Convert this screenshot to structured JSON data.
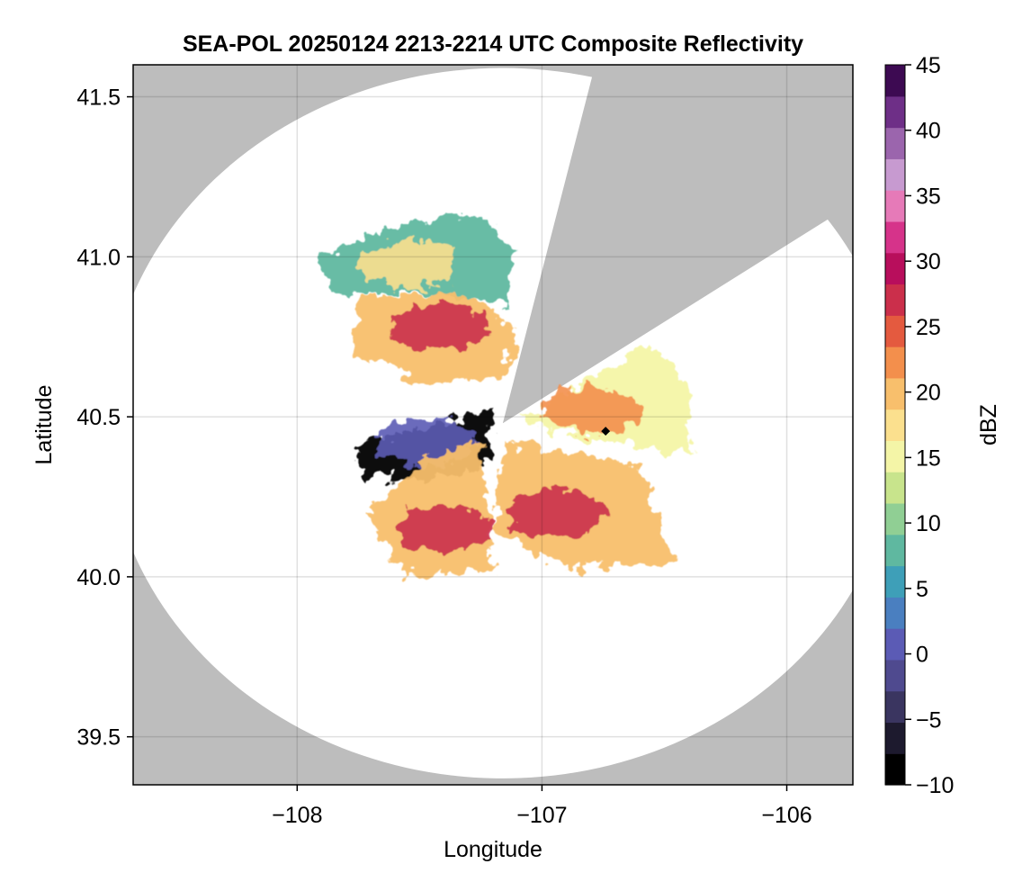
{
  "chart_data": {
    "type": "heatmap",
    "title": "SEA-POL 20250124 2213-2214 UTC Composite Reflectivity",
    "xlabel": "Longitude",
    "ylabel": "Latitude",
    "xlim": [
      -108.67,
      -105.73
    ],
    "ylim": [
      39.35,
      41.6
    ],
    "xticks": [
      -108,
      -107,
      -106
    ],
    "xtick_labels": [
      "−108",
      "−107",
      "−106"
    ],
    "yticks": [
      39.5,
      40.0,
      40.5,
      41.0,
      41.5
    ],
    "ytick_labels": [
      "39.5",
      "40.0",
      "40.5",
      "41.0",
      "41.5"
    ],
    "grid": true,
    "background_color": "#bdbdbd",
    "radar": {
      "center_lon": -107.16,
      "center_lat": 40.48,
      "range_lon": 1.62,
      "range_lat": 1.11,
      "blocked_sectors_deg_from_north": [
        [
          13,
          55
        ]
      ],
      "marker": {
        "lon": -106.74,
        "lat": 40.455
      }
    },
    "echo_regions": [
      {
        "name": "northwest band",
        "lon": -107.55,
        "lat": 40.98,
        "dbz": 17
      },
      {
        "name": "northwest core",
        "lon": -107.42,
        "lat": 40.78,
        "dbz": 27
      },
      {
        "name": "west low echo",
        "lon": -107.48,
        "lat": 40.42,
        "dbz": 0
      },
      {
        "name": "east sector",
        "lon": -106.8,
        "lat": 40.52,
        "dbz": 22
      },
      {
        "name": "southeast core",
        "lon": -106.95,
        "lat": 40.2,
        "dbz": 28
      },
      {
        "name": "southwest core",
        "lon": -107.4,
        "lat": 40.15,
        "dbz": 27
      }
    ],
    "colorbar": {
      "label": "dBZ",
      "min": -10,
      "max": 45,
      "ticks": [
        -10,
        -5,
        0,
        5,
        10,
        15,
        20,
        25,
        30,
        35,
        40,
        45
      ],
      "tick_labels": [
        "−10",
        "−5",
        "0",
        "5",
        "10",
        "15",
        "20",
        "25",
        "30",
        "35",
        "40",
        "45"
      ],
      "colormap": [
        "#000000",
        "#1d1a2e",
        "#3a3560",
        "#4f4a8f",
        "#5b5bb5",
        "#4a7fc0",
        "#3e9fb8",
        "#5fb8a0",
        "#90cf94",
        "#c8e48c",
        "#f4f5a7",
        "#fbe08e",
        "#f8bf6c",
        "#f38f4c",
        "#e45a3f",
        "#cb2f4b",
        "#b80e5c",
        "#d6338a",
        "#e67ab8",
        "#c79ad0",
        "#9b65ad",
        "#6e2f87",
        "#3d0a52"
      ]
    }
  }
}
